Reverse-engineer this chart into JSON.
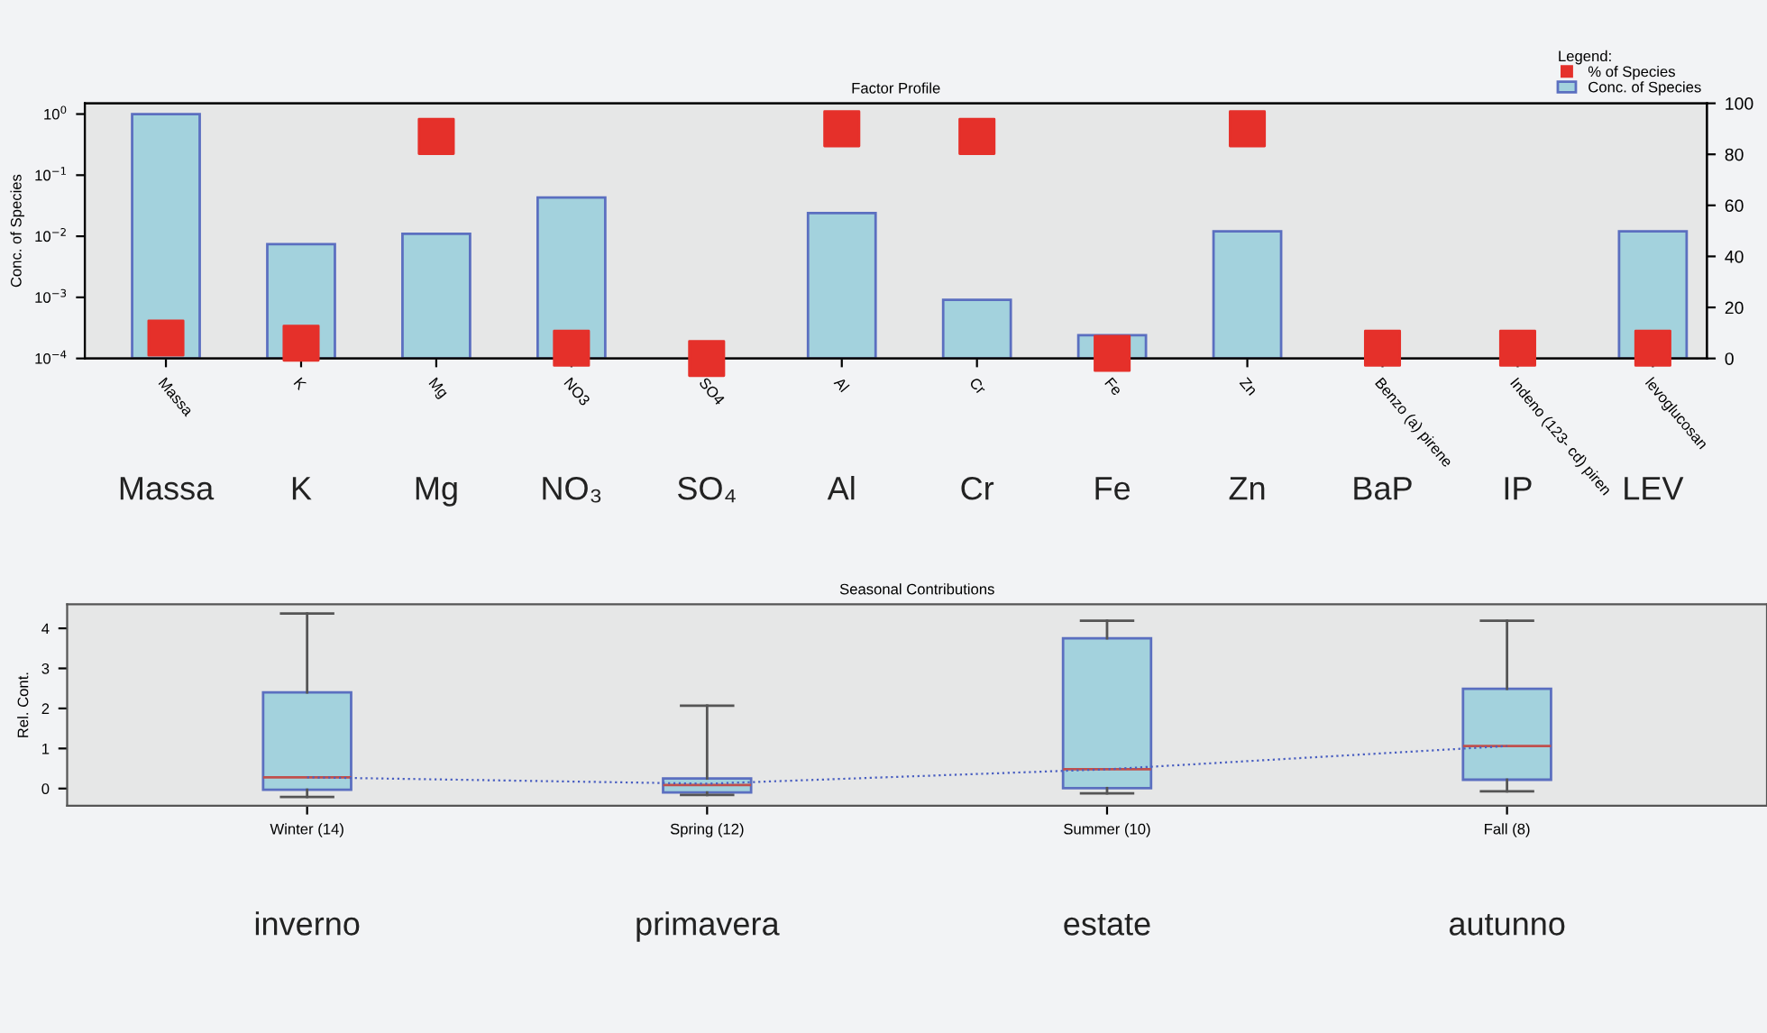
{
  "chart_data": [
    {
      "type": "bar",
      "title": "Factor Profile",
      "ylabel": "Conc. of Species",
      "legend_title": "Legend:",
      "legend": "top right",
      "log": "y",
      "grid": false,
      "categories": [
        "Massa",
        "K",
        "Mg",
        "NO3",
        "SO4",
        "Al",
        "Cr",
        "Fe",
        "Zn",
        "Benzo (a) pirene",
        "Indeno (123- cd) piren",
        "levoglucosan"
      ],
      "series": [
        {
          "name": "Conc. of Species",
          "type": "bar",
          "color": "#a3d2dd",
          "values": [
            1.0,
            0.0074,
            0.011,
            0.043,
            null,
            0.024,
            0.00091,
            0.00024,
            0.012,
            null,
            null,
            0.012
          ]
        },
        {
          "name": "% of Species",
          "type": "scatter",
          "axis": "y2",
          "marker": "square",
          "color": "#e5302a",
          "values": [
            8,
            6,
            87,
            4,
            0,
            90,
            87,
            2,
            90,
            4,
            4,
            4
          ]
        }
      ],
      "ylim": [
        0.0001,
        1.5
      ],
      "yticks": [
        {
          "value": 0.0001,
          "label": "10$^{−4}$"
        },
        {
          "value": 0.001,
          "label": "10$^{−3}$"
        },
        {
          "value": 0.01,
          "label": "10$^{−2}$"
        },
        {
          "value": 0.1,
          "label": "10$^{−1}$"
        },
        {
          "value": 1,
          "label": "10$^{0}$"
        }
      ],
      "y2lim": [
        0,
        100
      ],
      "y2ticks": [
        0,
        20,
        40,
        60,
        80,
        100
      ],
      "annotations": [
        "Massa",
        "K",
        "Mg",
        "NO₃",
        "SO₄",
        "Al",
        "Cr",
        "Fe",
        "Zn",
        "BaP",
        "IP",
        "LEV"
      ]
    },
    {
      "type": "box",
      "title": "Seasonal Contributions",
      "ylabel": "Rel. Cont.",
      "grid": false,
      "categories": [
        "Winter (14)",
        "Spring (12)",
        "Summer (10)",
        "Fall (8)"
      ],
      "boxes": [
        {
          "low": -0.21,
          "q1": -0.03,
          "median": 0.28,
          "q3": 2.4,
          "high": 4.37
        },
        {
          "low": -0.16,
          "q1": -0.1,
          "median": 0.09,
          "q3": 0.25,
          "high": 2.07
        },
        {
          "low": -0.12,
          "q1": 0.01,
          "median": 0.48,
          "q3": 3.75,
          "high": 4.19
        },
        {
          "low": -0.07,
          "q1": 0.22,
          "median": 1.06,
          "q3": 2.49,
          "high": 4.19
        }
      ],
      "color": "#a3d2dd",
      "series": [
        {
          "type": "line",
          "color": "#4a5fc1",
          "line_style": "dotted",
          "values": [
            0.28,
            0.12,
            0.48,
            1.06
          ]
        }
      ],
      "ylim": [
        -0.43,
        4.6
      ],
      "yticks": [
        0,
        1,
        2,
        3,
        4
      ],
      "annotations": [
        "inverno",
        "primavera",
        "estate",
        "autunno"
      ]
    }
  ]
}
